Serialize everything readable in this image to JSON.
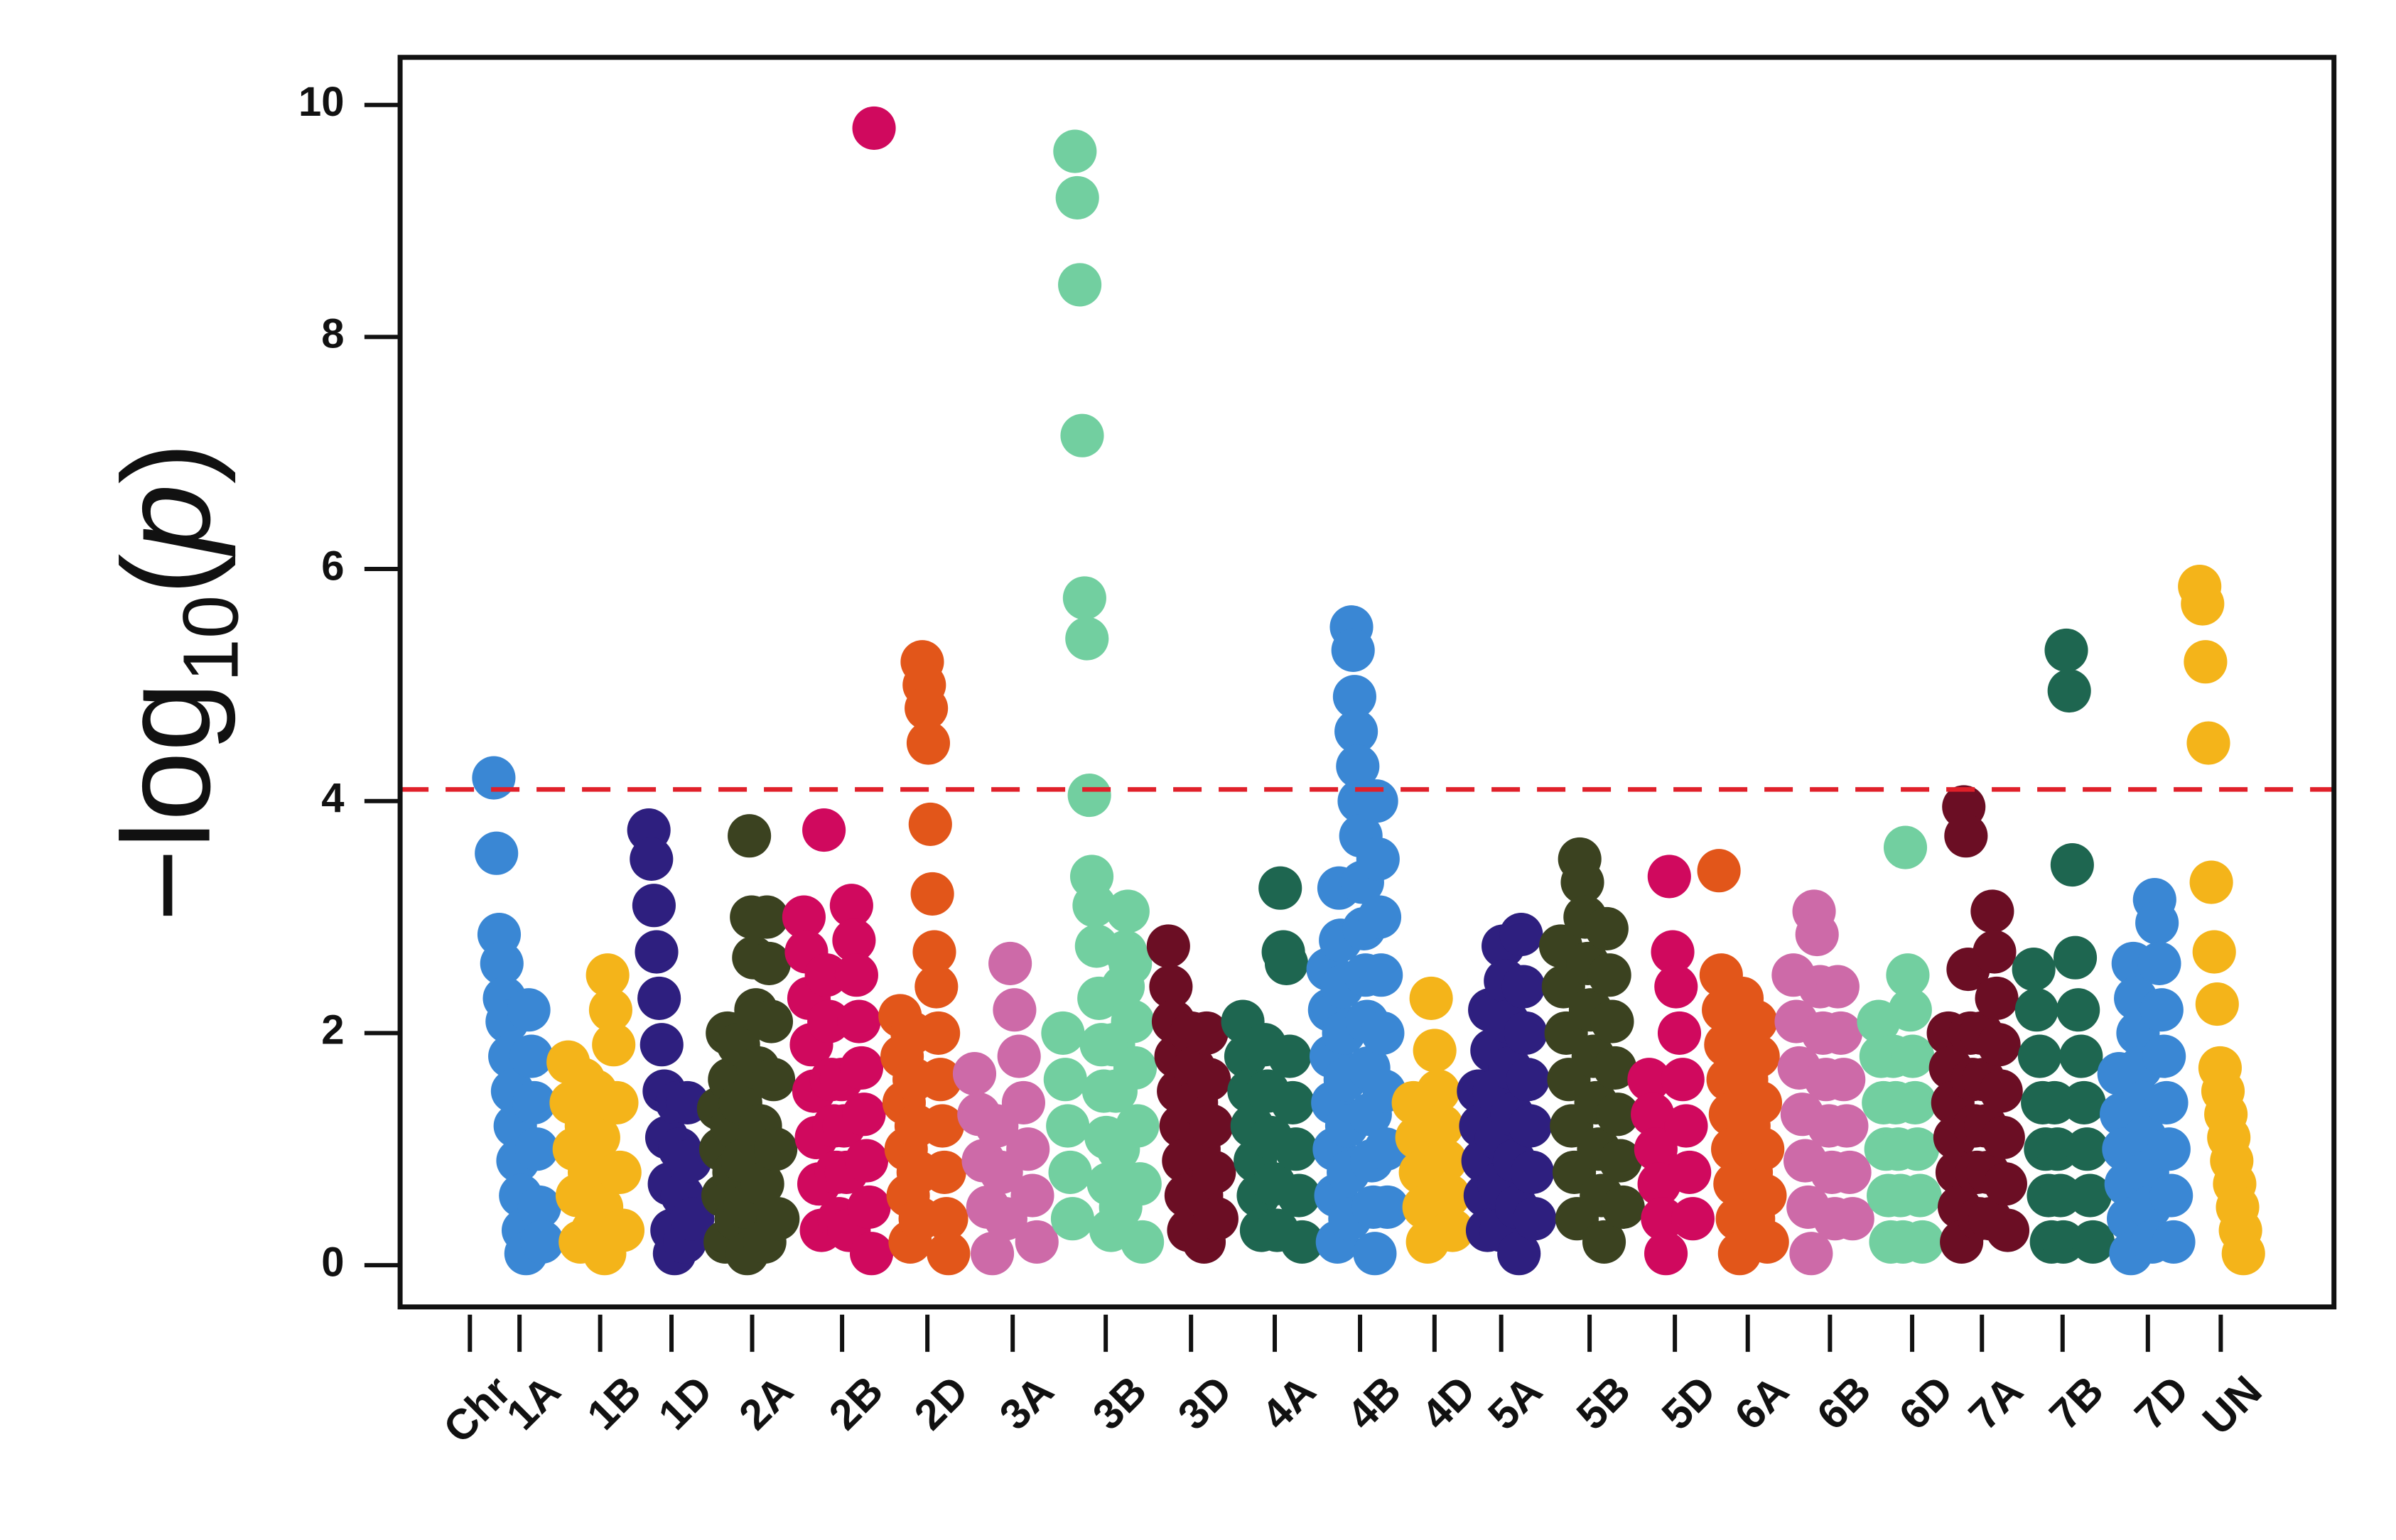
{
  "chart_data": {
    "type": "manhattan",
    "ylabel": [
      "−log",
      "10",
      "(",
      "p",
      ")"
    ],
    "x_label": "Chr",
    "ylim": [
      -0.36,
      10.41
    ],
    "yticks": [
      0,
      2,
      4,
      6,
      8,
      10
    ],
    "threshold": 4.1,
    "threshold_color": "#e0202a",
    "series": [
      {
        "name": "1A",
        "color": "#3a87d4",
        "values": [
          4.2,
          3.55,
          2.85,
          2.6,
          2.3,
          2.1,
          1.8,
          1.5,
          1.2,
          0.9,
          0.6,
          0.3,
          0.1,
          2.2,
          1.8,
          1.4,
          1.0,
          0.5,
          0.2
        ]
      },
      {
        "name": "1B",
        "color": "#f4b41a",
        "values": [
          1.75,
          1.4,
          1.0,
          0.6,
          0.2,
          1.6,
          1.2,
          0.8,
          0.3,
          1.5,
          1.1,
          0.5,
          0.1,
          2.5,
          2.2,
          1.9,
          1.4,
          0.8,
          0.3
        ]
      },
      {
        "name": "1D",
        "color": "#2e1f7f",
        "values": [
          3.75,
          3.5,
          3.1,
          2.7,
          2.3,
          1.9,
          1.5,
          1.1,
          0.7,
          0.3,
          0.1,
          1.4,
          1.0,
          0.6,
          0.2,
          1.4,
          0.9,
          0.4
        ]
      },
      {
        "name": "2A",
        "color": "#3b4220",
        "values": [
          1.35,
          1.0,
          0.6,
          0.2,
          2.0,
          1.6,
          1.2,
          0.8,
          0.4,
          1.9,
          1.4,
          0.9,
          0.5,
          0.1,
          3.7,
          3.0,
          2.65,
          2.2,
          1.7,
          1.2,
          0.7,
          0.2,
          3.0,
          2.6,
          2.1,
          1.6,
          1.0,
          0.4
        ]
      },
      {
        "name": "2B",
        "color": "#d0095e",
        "values": [
          3.0,
          2.7,
          2.3,
          1.9,
          1.5,
          1.1,
          0.7,
          0.3,
          3.75,
          2.5,
          2.1,
          1.6,
          1.2,
          0.8,
          0.4,
          1.6,
          1.2,
          0.8,
          0.3,
          3.1,
          2.8,
          2.5,
          2.1,
          1.7,
          1.3,
          0.9,
          0.5,
          0.1,
          9.8
        ]
      },
      {
        "name": "2D",
        "color": "#e2561a",
        "values": [
          2.15,
          1.8,
          1.4,
          1.0,
          0.6,
          0.2,
          2.0,
          1.6,
          1.2,
          0.8,
          0.4,
          5.2,
          5.0,
          4.8,
          4.5,
          3.8,
          3.2,
          2.7,
          2.4,
          2.0,
          1.6,
          1.2,
          0.8,
          0.4,
          0.1
        ]
      },
      {
        "name": "3A",
        "color": "#cd6aa8",
        "values": [
          1.65,
          1.3,
          0.9,
          0.5,
          0.1,
          1.2,
          0.8,
          0.4,
          2.6,
          2.2,
          1.8,
          1.4,
          1.0,
          0.6,
          0.2
        ]
      },
      {
        "name": "3B",
        "color": "#72cfa0",
        "values": [
          2.0,
          1.6,
          1.2,
          0.8,
          0.4,
          9.6,
          9.2,
          8.45,
          7.15,
          5.75,
          5.4,
          4.05,
          3.35,
          3.1,
          2.75,
          2.3,
          1.9,
          1.5,
          1.1,
          0.7,
          0.3,
          1.9,
          1.5,
          1.0,
          0.5,
          2.4,
          2.7,
          3.05,
          2.6,
          2.1,
          1.7,
          1.2,
          0.7,
          0.2
        ]
      },
      {
        "name": "3D",
        "color": "#6b0e24",
        "values": [
          2.75,
          2.4,
          2.1,
          1.8,
          1.5,
          1.2,
          0.9,
          0.6,
          0.3,
          2.0,
          1.7,
          1.4,
          1.0,
          0.6,
          0.2,
          2.0,
          1.6,
          1.2,
          0.8,
          0.4
        ]
      },
      {
        "name": "4A",
        "color": "#1e6650",
        "values": [
          2.1,
          1.8,
          1.5,
          1.2,
          0.9,
          0.6,
          0.3,
          1.9,
          1.5,
          1.1,
          0.7,
          0.3,
          3.25,
          2.7,
          2.6,
          1.8,
          1.4,
          1.0,
          0.6,
          0.2
        ]
      },
      {
        "name": "4B",
        "color": "#3a87d4",
        "values": [
          2.55,
          2.2,
          1.8,
          1.4,
          1.0,
          0.6,
          0.2,
          3.25,
          2.8,
          2.4,
          2.0,
          1.6,
          1.2,
          0.8,
          0.4,
          5.5,
          5.3,
          4.9,
          4.6,
          4.3,
          4.0,
          3.7,
          3.3,
          2.9,
          2.5,
          2.1,
          1.7,
          1.3,
          0.9,
          0.5,
          0.1,
          4.0,
          3.5,
          3.0,
          2.5,
          2.0,
          1.5,
          1.0,
          0.5
        ]
      },
      {
        "name": "4D",
        "color": "#f4b41a",
        "values": [
          1.4,
          1.1,
          0.8,
          0.5,
          0.2,
          2.3,
          1.85,
          1.5,
          1.2,
          0.9,
          0.6,
          0.3
        ]
      },
      {
        "name": "5A",
        "color": "#2e1f7f",
        "values": [
          1.5,
          1.2,
          0.9,
          0.6,
          0.3,
          2.2,
          1.85,
          1.5,
          1.1,
          0.7,
          0.3,
          2.75,
          2.45,
          2.1,
          1.7,
          1.3,
          0.9,
          0.5,
          0.1,
          2.85,
          2.4,
          2.0,
          1.6,
          1.2,
          0.8,
          0.4
        ]
      },
      {
        "name": "5B",
        "color": "#3b4220",
        "values": [
          2.75,
          2.4,
          2.0,
          1.6,
          1.2,
          0.8,
          0.4,
          3.5,
          3.3,
          3.0,
          2.6,
          2.2,
          1.8,
          1.4,
          1.0,
          0.6,
          0.2,
          2.9,
          2.5,
          2.1,
          1.7,
          1.3,
          0.9,
          0.5
        ]
      },
      {
        "name": "5D",
        "color": "#d0095e",
        "values": [
          1.6,
          1.3,
          1.0,
          0.7,
          0.4,
          0.1,
          3.35,
          2.7,
          2.4,
          2.0,
          1.6,
          1.2,
          0.8,
          0.4
        ]
      },
      {
        "name": "6A",
        "color": "#e2561a",
        "values": [
          3.4,
          2.5,
          2.2,
          1.9,
          1.6,
          1.3,
          1.0,
          0.7,
          0.4,
          0.1,
          2.3,
          2.0,
          1.6,
          1.2,
          0.8,
          0.4,
          2.1,
          1.8,
          1.4,
          1.0,
          0.6,
          0.2
        ]
      },
      {
        "name": "6B",
        "color": "#cd6aa8",
        "values": [
          2.5,
          2.1,
          1.7,
          1.3,
          0.9,
          0.5,
          0.1,
          3.05,
          2.85,
          2.4,
          2.0,
          1.6,
          1.2,
          0.8,
          0.4,
          2.4,
          2.0,
          1.6,
          1.2,
          0.8,
          0.4
        ]
      },
      {
        "name": "6D",
        "color": "#72cfa0",
        "values": [
          2.1,
          1.8,
          1.4,
          1.0,
          0.6,
          0.2,
          1.8,
          1.4,
          1.0,
          0.6,
          0.2,
          3.6,
          2.5,
          2.2,
          1.8,
          1.4,
          1.0,
          0.6,
          0.2
        ]
      },
      {
        "name": "7A",
        "color": "#6b0e24",
        "values": [
          2.0,
          1.7,
          1.4,
          1.1,
          0.8,
          0.5,
          0.2,
          3.95,
          3.7,
          2.55,
          2.0,
          1.6,
          1.2,
          0.8,
          0.4,
          2.0,
          1.6,
          1.2,
          0.8,
          0.4,
          3.05,
          2.7,
          2.3,
          1.9,
          1.5,
          1.1,
          0.7,
          0.3
        ]
      },
      {
        "name": "7B",
        "color": "#1e6650",
        "values": [
          2.55,
          2.2,
          1.8,
          1.4,
          1.0,
          0.6,
          0.2,
          1.4,
          1.0,
          0.6,
          0.2,
          5.3,
          4.95,
          3.45,
          2.65,
          2.2,
          1.8,
          1.4,
          1.0,
          0.6,
          0.2
        ]
      },
      {
        "name": "7D",
        "color": "#3a87d4",
        "values": [
          1.65,
          1.3,
          1.0,
          0.7,
          0.4,
          0.1,
          2.6,
          2.3,
          2.0,
          1.7,
          1.4,
          1.1,
          0.8,
          0.5,
          0.2,
          3.15,
          2.95,
          2.6,
          2.2,
          1.8,
          1.4,
          1.0,
          0.6,
          0.2
        ]
      },
      {
        "name": "UN",
        "color": "#f4b41a",
        "values": [
          5.85,
          5.7,
          5.2,
          4.5,
          3.3,
          2.7,
          2.25,
          1.7,
          1.5,
          1.3,
          1.1,
          0.9,
          0.7,
          0.5,
          0.3,
          0.1
        ]
      }
    ]
  }
}
